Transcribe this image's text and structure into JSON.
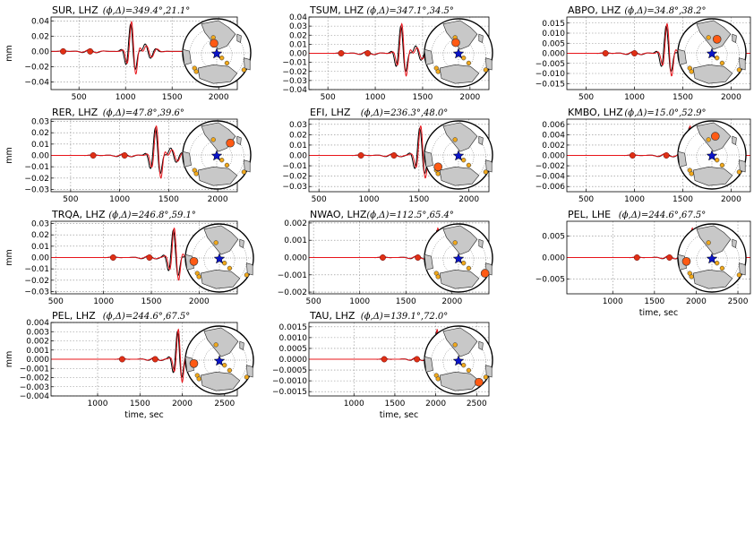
{
  "colors": {
    "obs": "#000000",
    "syn": "#e8141a",
    "marker": "#e03015",
    "event": "#0a14c8",
    "station": "#f0a81c",
    "target": "#ff5a14",
    "land": "#c8c8c8"
  },
  "chart_data": [
    {
      "type": "line",
      "station": "SUR, LHZ",
      "phi_delta": "(ϕ,Δ)=349.4°,21.1°",
      "xlim": [
        200,
        2200
      ],
      "xticks": [
        "500",
        "1000",
        "1500",
        "2000"
      ],
      "ylim": [
        -0.05,
        0.045
      ],
      "yticks": [
        "0.04",
        "0.02",
        "0.00",
        "−0.02",
        "−0.04"
      ],
      "ylabel": "mm",
      "xlabel": "",
      "picks": [
        330,
        620
      ],
      "map": {
        "stations": [
          [
            -0.1,
            -0.45
          ],
          [
            -0.65,
            0.45
          ],
          [
            -0.6,
            0.55
          ],
          [
            0.3,
            0.3
          ],
          [
            0.8,
            0.5
          ],
          [
            0.15,
            0.15
          ]
        ],
        "target": [
          -0.08,
          -0.28
        ]
      }
    },
    {
      "type": "line",
      "station": "TSUM, LHZ",
      "phi_delta": "(ϕ,Δ)=347.1°,34.5°",
      "xlim": [
        300,
        2200
      ],
      "xticks": [
        "500",
        "1000",
        "1500",
        "2000"
      ],
      "ylim": [
        -0.04,
        0.04
      ],
      "yticks": [
        "0.04",
        "0.03",
        "0.02",
        "0.01",
        "0.00",
        "−0.01",
        "−0.02",
        "−0.03",
        "−0.04"
      ],
      "ylabel": "",
      "xlabel": "",
      "picks": [
        640,
        920
      ],
      "map": {
        "stations": [
          [
            -0.1,
            -0.45
          ],
          [
            -0.65,
            0.45
          ],
          [
            -0.6,
            0.55
          ],
          [
            0.3,
            0.3
          ],
          [
            0.8,
            0.5
          ],
          [
            0.15,
            0.15
          ]
        ],
        "target": [
          -0.08,
          -0.3
        ]
      }
    },
    {
      "type": "line",
      "station": "ABPO, LHZ",
      "phi_delta": "(ϕ,Δ)=34.8°,38.2°",
      "xlim": [
        300,
        2200
      ],
      "xticks": [
        "500",
        "1000",
        "1500",
        "2000"
      ],
      "ylim": [
        -0.018,
        0.018
      ],
      "yticks": [
        "0.015",
        "0.010",
        "0.005",
        "0.000",
        "−0.005",
        "−0.010",
        "−0.015"
      ],
      "ylabel": "",
      "xlabel": "",
      "picks": [
        700,
        1000
      ],
      "map": {
        "stations": [
          [
            -0.1,
            -0.45
          ],
          [
            -0.65,
            0.45
          ],
          [
            -0.6,
            0.55
          ],
          [
            0.3,
            0.3
          ],
          [
            0.8,
            0.5
          ],
          [
            0.15,
            0.15
          ]
        ],
        "target": [
          0.15,
          -0.4
        ]
      }
    },
    {
      "type": "line",
      "station": "RER, LHZ",
      "phi_delta": "(ϕ,Δ)=47.8°,39.6°",
      "xlim": [
        300,
        2200
      ],
      "xticks": [
        "500",
        "1000",
        "1500",
        "2000"
      ],
      "ylim": [
        -0.032,
        0.032
      ],
      "yticks": [
        "0.03",
        "0.02",
        "0.01",
        "0.00",
        "−0.01",
        "−0.02",
        "−0.03"
      ],
      "ylabel": "mm",
      "xlabel": "",
      "picks": [
        730,
        1050
      ],
      "map": {
        "stations": [
          [
            -0.1,
            -0.45
          ],
          [
            -0.65,
            0.45
          ],
          [
            -0.6,
            0.55
          ],
          [
            0.3,
            0.3
          ],
          [
            0.8,
            0.5
          ],
          [
            0.15,
            0.15
          ]
        ],
        "target": [
          0.4,
          -0.35
        ]
      }
    },
    {
      "type": "line",
      "station": "EFI, LHZ",
      "phi_delta": "(ϕ,Δ)=236.3°,48.0°",
      "xlim": [
        400,
        2200
      ],
      "xticks": [
        "500",
        "1000",
        "1500",
        "2000"
      ],
      "ylim": [
        -0.035,
        0.035
      ],
      "yticks": [
        "0.03",
        "0.02",
        "0.01",
        "0.00",
        "−0.01",
        "−0.02",
        "−0.03"
      ],
      "ylabel": "",
      "xlabel": "",
      "picks": [
        920,
        1250
      ],
      "map": {
        "stations": [
          [
            -0.1,
            -0.45
          ],
          [
            -0.65,
            0.45
          ],
          [
            -0.6,
            0.55
          ],
          [
            0.3,
            0.3
          ],
          [
            0.8,
            0.5
          ],
          [
            0.15,
            0.15
          ]
        ],
        "target": [
          -0.6,
          0.35
        ]
      }
    },
    {
      "type": "line",
      "station": "KMBO, LHZ",
      "phi_delta": "(ϕ,Δ)=15.0°,52.9°",
      "xlim": [
        300,
        2200
      ],
      "xticks": [
        "500",
        "1000",
        "1500",
        "2000"
      ],
      "ylim": [
        -0.007,
        0.007
      ],
      "yticks": [
        "0.006",
        "0.004",
        "0.002",
        "0.000",
        "−0.002",
        "−0.004",
        "−0.006"
      ],
      "ylabel": "",
      "xlabel": "",
      "picks": [
        980,
        1330
      ],
      "map": {
        "stations": [
          [
            -0.1,
            -0.45
          ],
          [
            -0.65,
            0.45
          ],
          [
            -0.6,
            0.55
          ],
          [
            0.3,
            0.3
          ],
          [
            0.8,
            0.5
          ],
          [
            0.15,
            0.15
          ]
        ],
        "target": [
          0.1,
          -0.55
        ]
      }
    },
    {
      "type": "line",
      "station": "TRQA, LHZ",
      "phi_delta": "(ϕ,Δ)=246.8°,59.1°",
      "xlim": [
        450,
        2400
      ],
      "xticks": [
        "500",
        "1000",
        "1500",
        "2000"
      ],
      "ylim": [
        -0.032,
        0.032
      ],
      "yticks": [
        "0.03",
        "0.02",
        "0.01",
        "0.00",
        "−0.01",
        "−0.02",
        "−0.03"
      ],
      "ylabel": "mm",
      "xlabel": "",
      "picks": [
        1100,
        1480
      ],
      "map": {
        "stations": [
          [
            -0.1,
            -0.45
          ],
          [
            -0.65,
            0.45
          ],
          [
            -0.6,
            0.55
          ],
          [
            0.3,
            0.3
          ],
          [
            0.8,
            0.5
          ],
          [
            0.15,
            0.15
          ]
        ],
        "target": [
          -0.75,
          0.1
        ]
      }
    },
    {
      "type": "line",
      "station": "NWAO, LHZ",
      "phi_delta": "(ϕ,Δ)=112.5°,65.4°",
      "xlim": [
        450,
        2400
      ],
      "xticks": [
        "500",
        "1000",
        "1500",
        "2000"
      ],
      "ylim": [
        -0.0021,
        0.0021
      ],
      "yticks": [
        "0.002",
        "0.001",
        "0.000",
        "−0.001",
        "−0.002"
      ],
      "ylabel": "",
      "xlabel": "",
      "picks": [
        1250,
        1630
      ],
      "map": {
        "stations": [
          [
            -0.1,
            -0.45
          ],
          [
            -0.65,
            0.45
          ],
          [
            -0.6,
            0.55
          ],
          [
            0.3,
            0.3
          ],
          [
            0.8,
            0.5
          ],
          [
            0.15,
            0.15
          ]
        ],
        "target": [
          0.78,
          0.45
        ]
      }
    },
    {
      "type": "line",
      "station": "PEL, LHE",
      "phi_delta": "(ϕ,Δ)=244.6°,67.5°",
      "xlim": [
        450,
        2650
      ],
      "xticks": [
        "1000",
        "1500",
        "2000",
        "2500"
      ],
      "ylim": [
        -0.0085,
        0.0085
      ],
      "yticks": [
        "0.005",
        "0.000",
        "−0.005"
      ],
      "ylabel": "",
      "xlabel": "time, sec",
      "picks": [
        1290,
        1680
      ],
      "map": {
        "stations": [
          [
            -0.1,
            -0.45
          ],
          [
            -0.65,
            0.45
          ],
          [
            -0.6,
            0.55
          ],
          [
            0.3,
            0.3
          ],
          [
            0.8,
            0.5
          ],
          [
            0.15,
            0.15
          ]
        ],
        "target": [
          -0.75,
          0.1
        ]
      }
    },
    {
      "type": "line",
      "station": "PEL, LHZ",
      "phi_delta": "(ϕ,Δ)=244.6°,67.5°",
      "xlim": [
        450,
        2650
      ],
      "xticks": [
        "1000",
        "1500",
        "2000",
        "2500"
      ],
      "ylim": [
        -0.004,
        0.004
      ],
      "yticks": [
        "0.004",
        "0.003",
        "0.002",
        "0.001",
        "0.000",
        "−0.001",
        "−0.002",
        "−0.003",
        "−0.004"
      ],
      "ylabel": "mm",
      "xlabel": "time, sec",
      "picks": [
        1290,
        1680
      ],
      "map": {
        "stations": [
          [
            -0.1,
            -0.45
          ],
          [
            -0.65,
            0.45
          ],
          [
            -0.6,
            0.55
          ],
          [
            0.3,
            0.3
          ],
          [
            0.8,
            0.5
          ],
          [
            0.15,
            0.15
          ]
        ],
        "target": [
          -0.75,
          0.1
        ]
      }
    },
    {
      "type": "line",
      "station": "TAU, LHZ",
      "phi_delta": "(ϕ,Δ)=139.1°,72.0°",
      "xlim": [
        450,
        2650
      ],
      "xticks": [
        "1000",
        "1500",
        "2000",
        "2500"
      ],
      "ylim": [
        -0.0017,
        0.0017
      ],
      "yticks": [
        "0.0015",
        "0.0010",
        "0.0005",
        "0.0000",
        "−0.0005",
        "−0.0010",
        "−0.0015"
      ],
      "ylabel": "",
      "xlabel": "time, sec",
      "picks": [
        1370,
        1770
      ],
      "map": {
        "stations": [
          [
            -0.1,
            -0.45
          ],
          [
            -0.65,
            0.45
          ],
          [
            -0.6,
            0.55
          ],
          [
            0.3,
            0.3
          ],
          [
            0.8,
            0.5
          ],
          [
            0.15,
            0.15
          ]
        ],
        "target": [
          0.6,
          0.65
        ]
      }
    }
  ]
}
